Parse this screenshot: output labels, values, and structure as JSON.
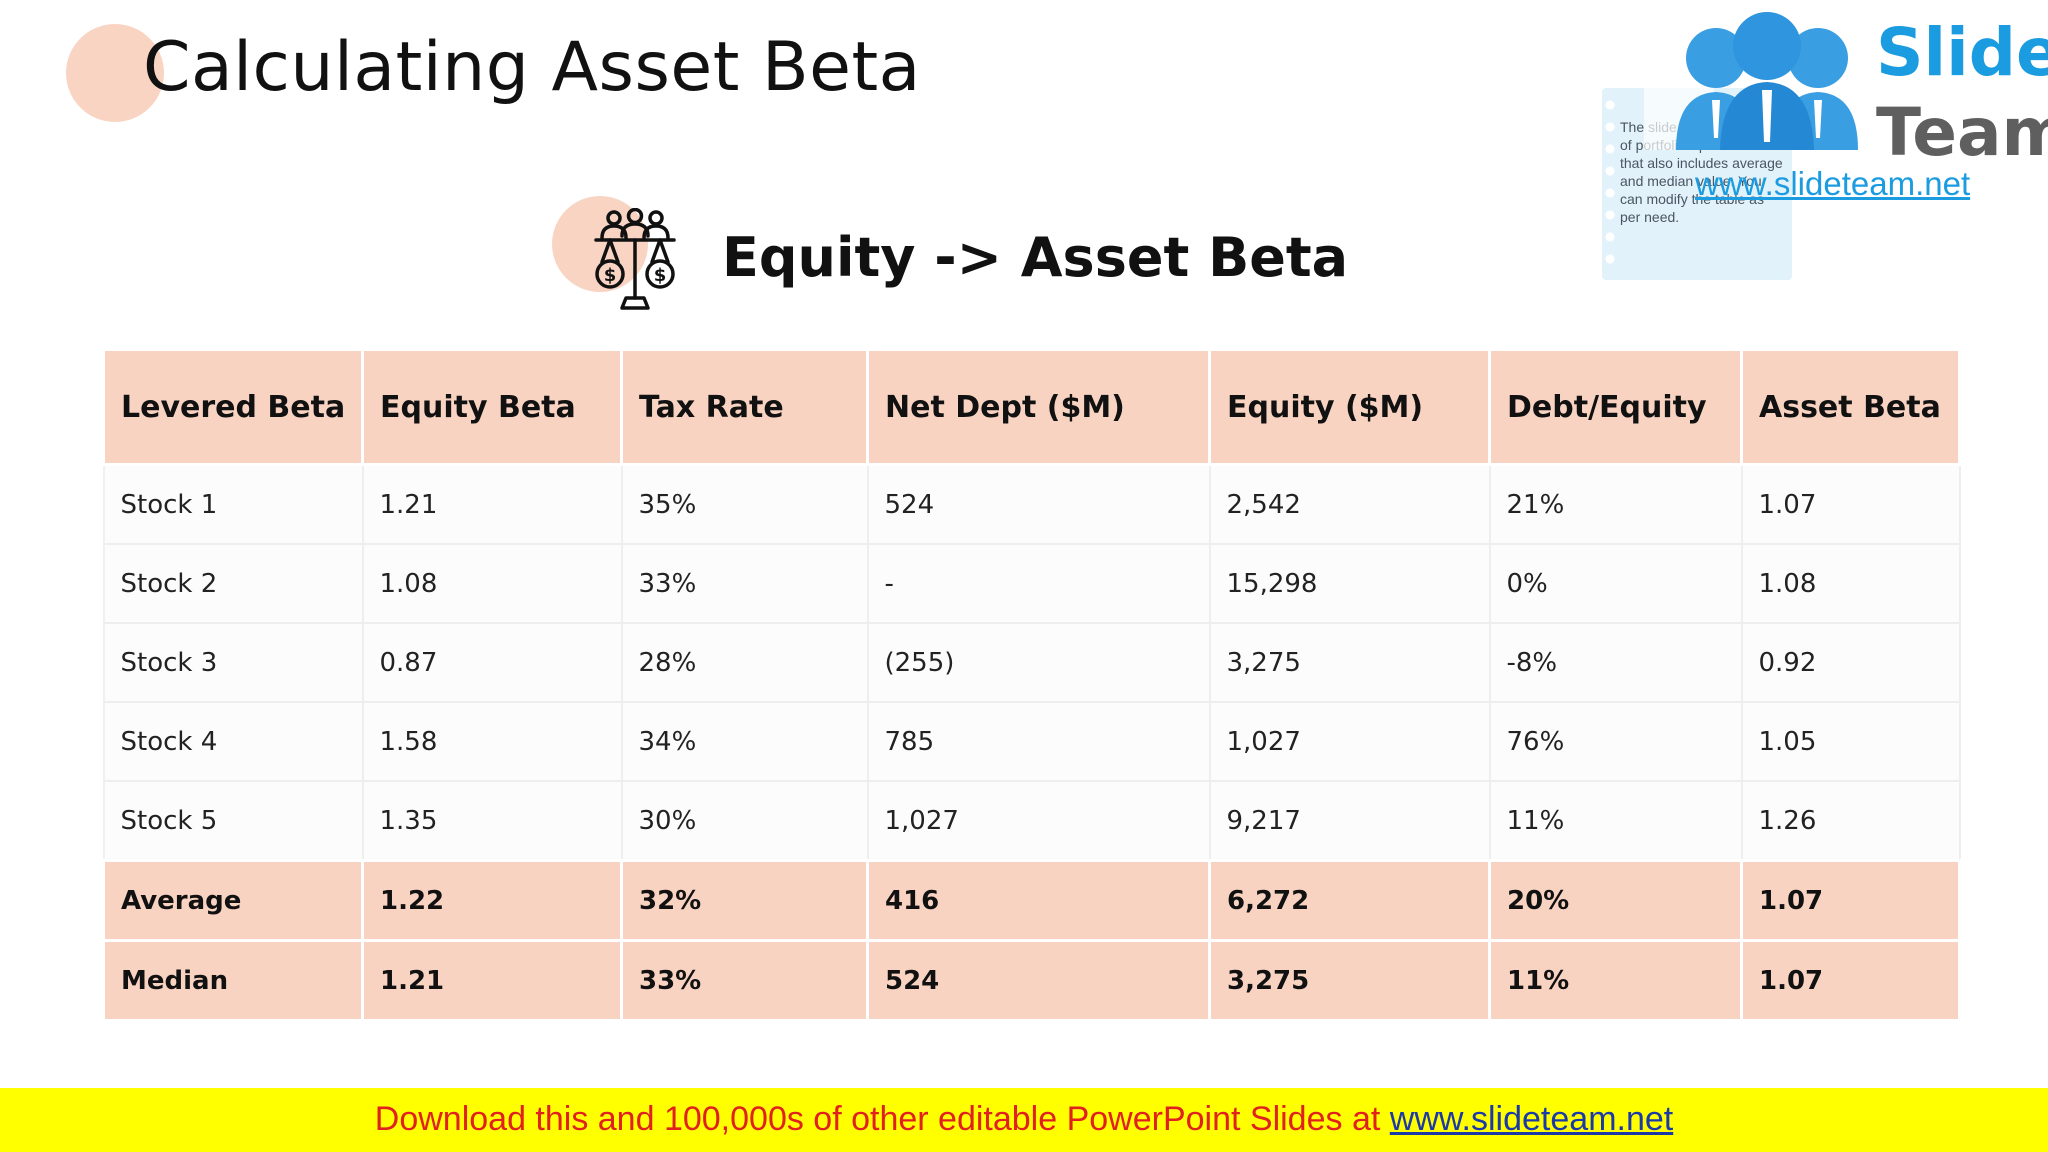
{
  "slide": {
    "title": "Calculating Asset Beta",
    "subtitle": "Equity -> Asset Beta",
    "subtitle_icon": "balance-scale-dollar-people-icon"
  },
  "logo": {
    "word1": "Slide",
    "word2": "Team",
    "url": "www.slideteam.net",
    "note_text": "The slide composite metric of portfolio's performance that also includes average and median value. You can modify the table as per need."
  },
  "table": {
    "headers": [
      "Levered Beta",
      "Equity Beta",
      "Tax Rate",
      "Net Dept ($M)",
      "Equity ($M)",
      "Debt/Equity",
      "Asset Beta"
    ],
    "rows": [
      [
        "Stock 1",
        "1.21",
        "35%",
        "524",
        "2,542",
        "21%",
        "1.07"
      ],
      [
        "Stock 2",
        "1.08",
        "33%",
        "-",
        "15,298",
        "0%",
        "1.08"
      ],
      [
        "Stock 3",
        "0.87",
        "28%",
        "(255)",
        "3,275",
        "-8%",
        "0.92"
      ],
      [
        "Stock 4",
        "1.58",
        "34%",
        "785",
        "1,027",
        "76%",
        "1.05"
      ],
      [
        "Stock 5",
        "1.35",
        "30%",
        "1,027",
        "9,217",
        "11%",
        "1.26"
      ]
    ],
    "summary_rows": [
      [
        "Average",
        "1.22",
        "32%",
        "416",
        "6,272",
        "20%",
        "1.07"
      ],
      [
        "Median",
        "1.21",
        "33%",
        "524",
        "3,275",
        "11%",
        "1.07"
      ]
    ]
  },
  "footer": {
    "text": "Download this and 100,000s of other editable PowerPoint Slides at ",
    "link": "www.slideteam.net"
  },
  "colors": {
    "accent_peach": "#f9d3c2",
    "logo_blue": "#1b9be0",
    "footer_bg": "#ffff00",
    "footer_text": "#e0211f"
  }
}
